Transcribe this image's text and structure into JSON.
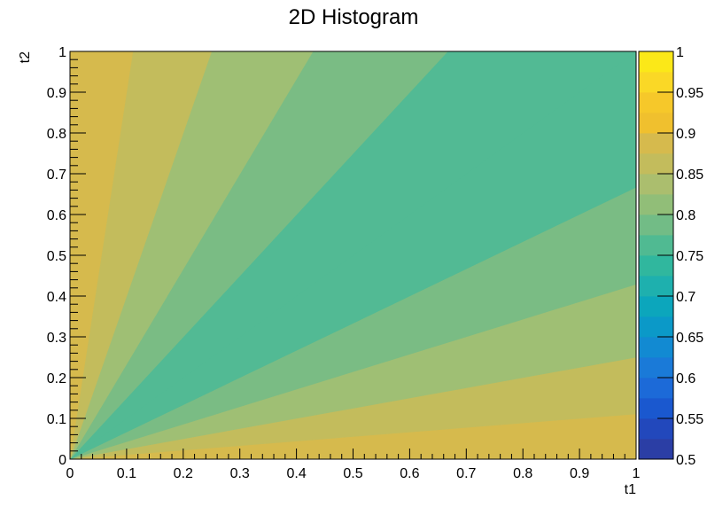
{
  "chart_data": {
    "type": "heatmap",
    "title": "2D Histogram",
    "xlabel": "t1",
    "ylabel": "t2",
    "xlim": [
      0,
      1
    ],
    "ylim": [
      0,
      1
    ],
    "x_ticks": [
      "0",
      "0.1",
      "0.2",
      "0.3",
      "0.4",
      "0.5",
      "0.6",
      "0.7",
      "0.8",
      "0.9",
      "1"
    ],
    "y_ticks": [
      "0",
      "0.1",
      "0.2",
      "0.3",
      "0.4",
      "0.5",
      "0.6",
      "0.7",
      "0.8",
      "0.9",
      "1"
    ],
    "colorbar": {
      "range": [
        0.5,
        1.0
      ],
      "tick_labels": [
        "0.5",
        "0.55",
        "0.6",
        "0.65",
        "0.7",
        "0.75",
        "0.8",
        "0.85",
        "0.9",
        "0.95",
        "1"
      ],
      "levels": [
        0.5,
        0.525,
        0.55,
        0.575,
        0.6,
        0.625,
        0.65,
        0.675,
        0.7,
        0.725,
        0.75,
        0.775,
        0.8,
        0.825,
        0.85,
        0.875,
        0.9,
        0.925,
        0.95,
        0.975,
        1.0
      ],
      "colors": [
        "#2B3EA5",
        "#2248BC",
        "#1A58CF",
        "#1C6AD8",
        "#1A7AD8",
        "#128AD2",
        "#0B99C8",
        "#0CA6BC",
        "#1EB0AE",
        "#30B79E",
        "#50BA92",
        "#72BC86",
        "#91BE78",
        "#ABBE6E",
        "#C3BC5C",
        "#D6BA4D",
        "#F0C02E",
        "#F6C82A",
        "#FAD826",
        "#FBE818"
      ]
    },
    "contour_regions": [
      {
        "band": "0.875-0.9",
        "color": "#D6BA4D",
        "slope_from": 0,
        "slope_to": 0.111,
        "side": "below-diagonal"
      },
      {
        "band": "0.85-0.875",
        "color": "#C3BC5C",
        "slope_from": 0.111,
        "slope_to": 0.25,
        "side": "below-diagonal"
      },
      {
        "band": "0.825-0.85",
        "color": "#9FBF74",
        "slope_from": 0.25,
        "slope_to": 0.429,
        "side": "below-diagonal"
      },
      {
        "band": "0.8-0.825",
        "color": "#7ABC84",
        "slope_from": 0.429,
        "slope_to": 0.667,
        "side": "below-diagonal"
      },
      {
        "band": "0.775-0.8",
        "color": "#52BA94",
        "slope_from": 0.667,
        "slope_to": 1.0,
        "side": "below-diagonal"
      },
      {
        "band": "0.775-0.8",
        "color": "#52BA94",
        "slope_from": 0.667,
        "slope_to": 1.0,
        "side": "above-diagonal"
      },
      {
        "band": "0.8-0.825",
        "color": "#7ABC84",
        "slope_from": 0.429,
        "slope_to": 0.667,
        "side": "above-diagonal"
      },
      {
        "band": "0.825-0.85",
        "color": "#9FBF74",
        "slope_from": 0.25,
        "slope_to": 0.429,
        "side": "above-diagonal"
      },
      {
        "band": "0.85-0.875",
        "color": "#C3BC5C",
        "slope_from": 0.111,
        "slope_to": 0.25,
        "side": "above-diagonal"
      },
      {
        "band": "0.875-0.9",
        "color": "#D6BA4D",
        "slope_from": 0,
        "slope_to": 0.111,
        "side": "above-diagonal"
      }
    ],
    "grid": false,
    "legend": "colorbar-right"
  }
}
